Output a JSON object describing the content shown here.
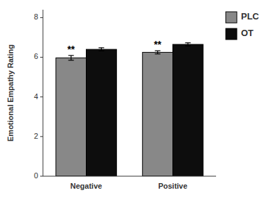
{
  "chart_data": {
    "type": "bar",
    "categories": [
      "Negative",
      "Positive"
    ],
    "ylabel": "Emotional Empathy Rating",
    "series": [
      {
        "name": "PLC",
        "color": "#888888",
        "values": [
          5.97,
          6.25
        ],
        "errors": [
          0.12,
          0.08
        ]
      },
      {
        "name": "OT",
        "color": "#0d0d0d",
        "values": [
          6.4,
          6.65
        ],
        "errors": [
          0.08,
          0.08
        ]
      }
    ],
    "annotations": [
      "**",
      "**"
    ],
    "ylim": [
      0,
      8.4
    ],
    "yticks": [
      0,
      2,
      4,
      6,
      8
    ],
    "grid": false,
    "legend": "upper right"
  }
}
